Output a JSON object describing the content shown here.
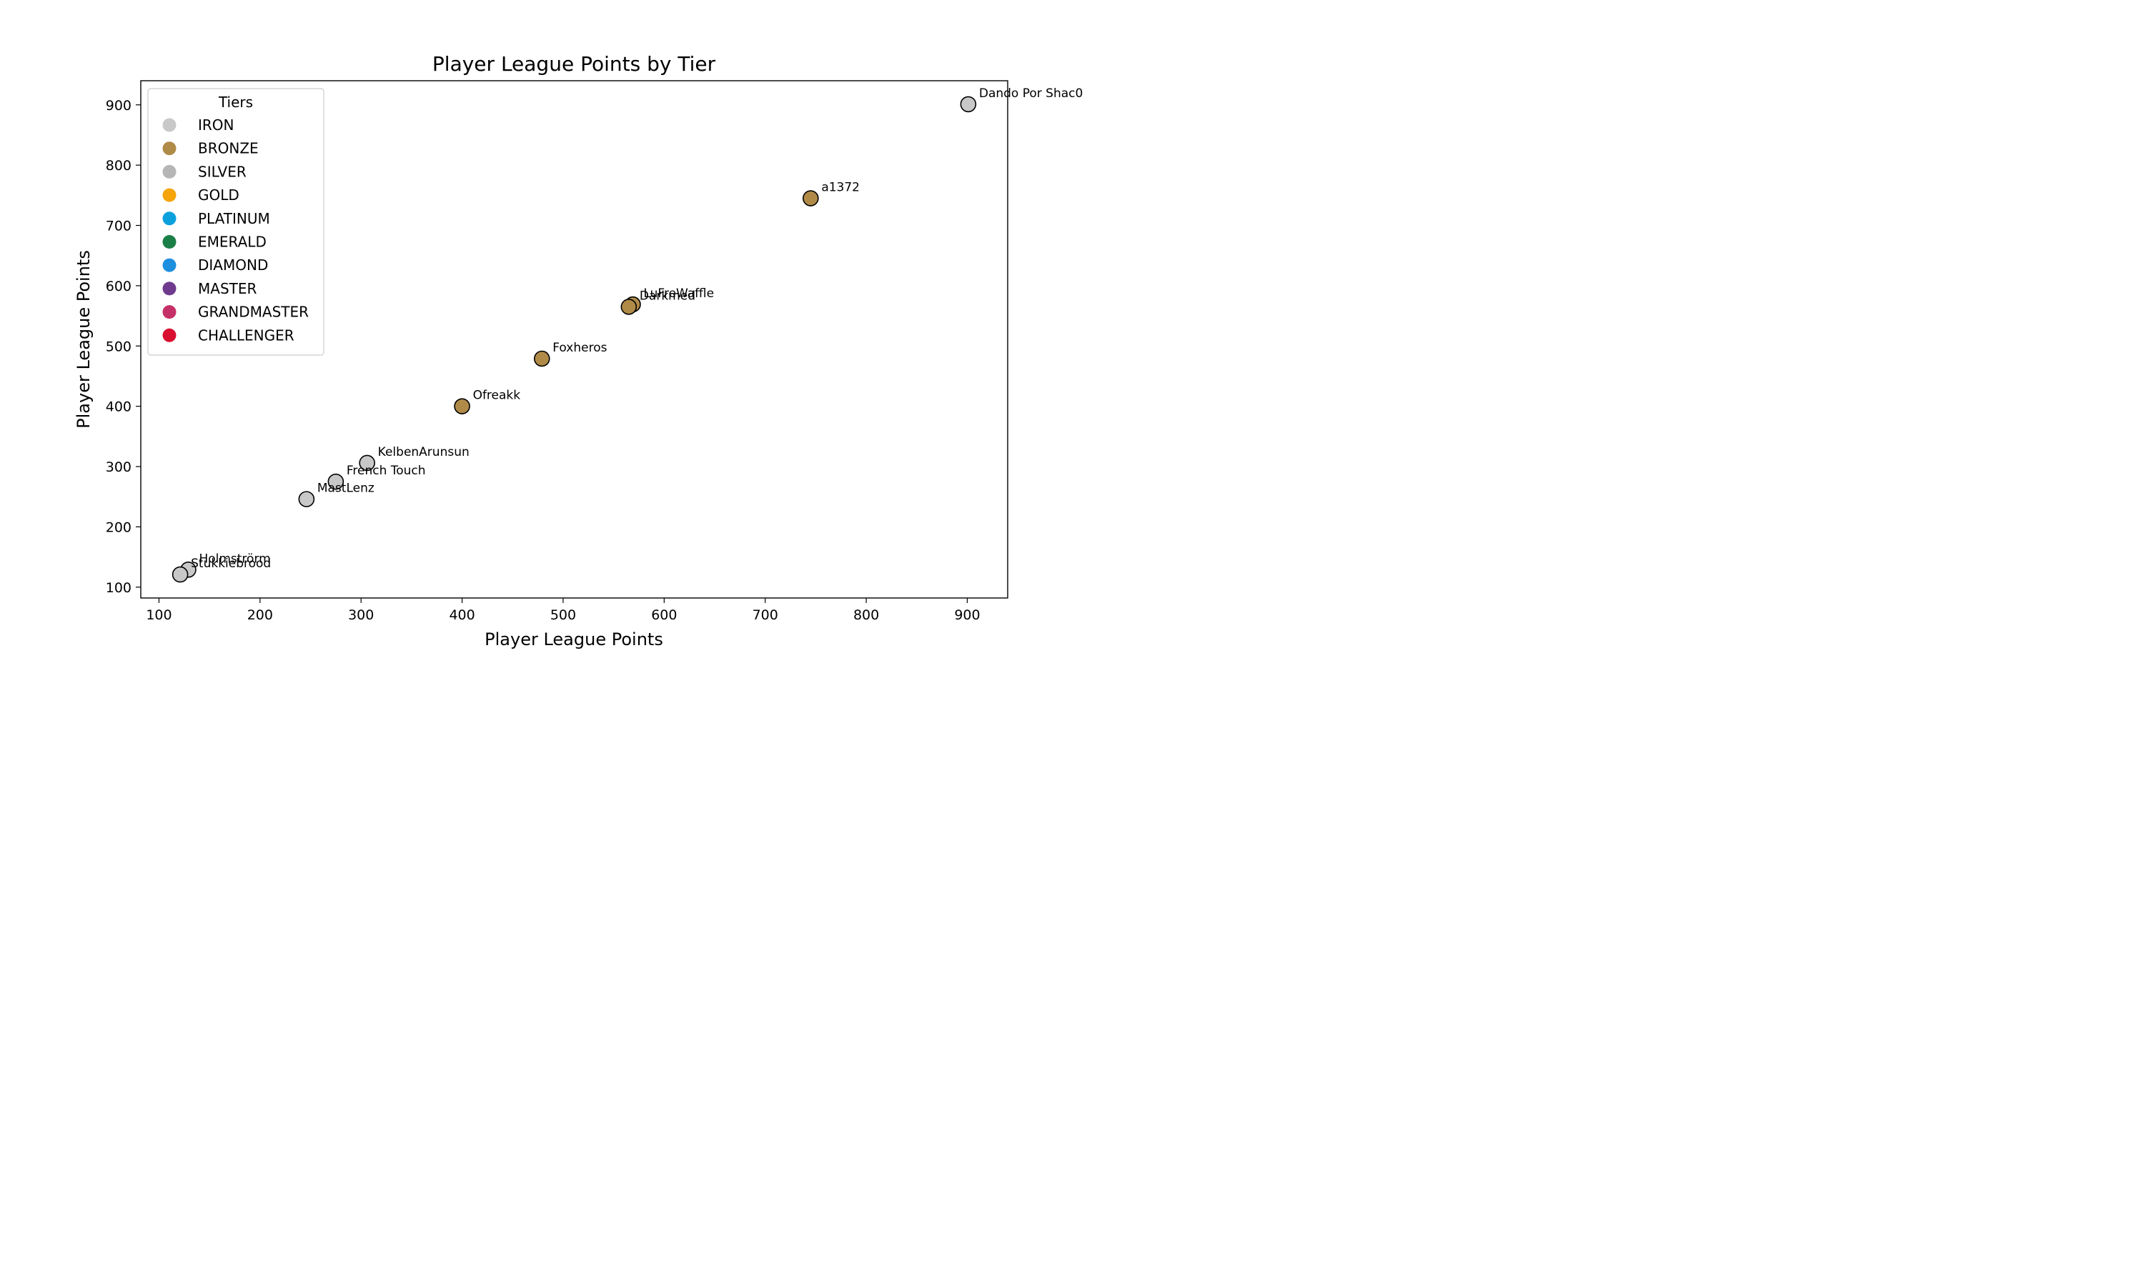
{
  "chart_data": {
    "type": "scatter",
    "title": "Player League Points by Tier",
    "xlabel": "Player League Points",
    "ylabel": "Player League Points",
    "xlim": [
      82,
      940
    ],
    "ylim": [
      82,
      940
    ],
    "xticks": [
      100,
      200,
      300,
      400,
      500,
      600,
      700,
      800,
      900
    ],
    "yticks": [
      100,
      200,
      300,
      400,
      500,
      600,
      700,
      800,
      900
    ],
    "grid": false,
    "legend": {
      "title": "Tiers",
      "placement": "upper-left",
      "entries": [
        {
          "name": "IRON",
          "color": "#c8c8c8"
        },
        {
          "name": "BRONZE",
          "color": "#b08b48"
        },
        {
          "name": "SILVER",
          "color": "#b6b6b6"
        },
        {
          "name": "GOLD",
          "color": "#f5a40a"
        },
        {
          "name": "PLATINUM",
          "color": "#0aa0dc"
        },
        {
          "name": "EMERALD",
          "color": "#1a7f46"
        },
        {
          "name": "DIAMOND",
          "color": "#1e8fdf"
        },
        {
          "name": "MASTER",
          "color": "#6e3b8e"
        },
        {
          "name": "GRANDMASTER",
          "color": "#c63068"
        },
        {
          "name": "CHALLENGER",
          "color": "#d80f2f"
        }
      ]
    },
    "points": [
      {
        "label": "Dando Por Shac0",
        "x": 901,
        "y": 901,
        "tier": "IRON",
        "color": "#c8c8c8"
      },
      {
        "label": "a1372",
        "x": 745,
        "y": 745,
        "tier": "BRONZE",
        "color": "#b08b48"
      },
      {
        "label": "LuFreWaffle",
        "x": 569,
        "y": 569,
        "tier": "BRONZE",
        "color": "#b08b48"
      },
      {
        "label": "Darkmed",
        "x": 565,
        "y": 565,
        "tier": "BRONZE",
        "color": "#b08b48"
      },
      {
        "label": "Foxheros",
        "x": 479,
        "y": 479,
        "tier": "BRONZE",
        "color": "#b08b48"
      },
      {
        "label": "Ofreakk",
        "x": 400,
        "y": 400,
        "tier": "BRONZE",
        "color": "#b08b48"
      },
      {
        "label": "KelbenArunsun",
        "x": 306,
        "y": 306,
        "tier": "IRON",
        "color": "#c8c8c8"
      },
      {
        "label": "French Touch",
        "x": 275,
        "y": 275,
        "tier": "IRON",
        "color": "#c8c8c8"
      },
      {
        "label": "MastLenz",
        "x": 246,
        "y": 246,
        "tier": "IRON",
        "color": "#c8c8c8"
      },
      {
        "label": "Holmströrm",
        "x": 129,
        "y": 129,
        "tier": "IRON",
        "color": "#c8c8c8"
      },
      {
        "label": "Stukkiebrood",
        "x": 121,
        "y": 121,
        "tier": "IRON",
        "color": "#c8c8c8"
      }
    ]
  }
}
